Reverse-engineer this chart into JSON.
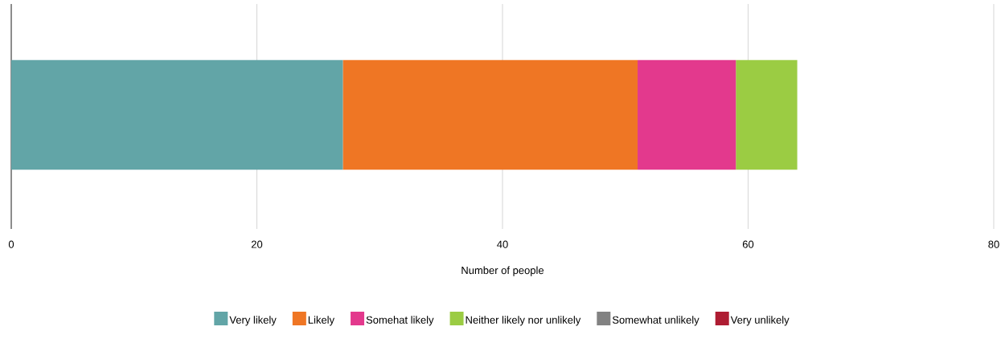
{
  "chart_data": {
    "type": "bar",
    "orientation": "horizontal",
    "stacked": true,
    "xlabel": "Number of people",
    "categories": [
      null
    ],
    "series": [
      {
        "name": "Very likely",
        "color": "#62a5a7",
        "values": [
          27
        ]
      },
      {
        "name": "Likely",
        "color": "#ef7624",
        "values": [
          24
        ]
      },
      {
        "name": "Somehat likely",
        "color": "#e3398d",
        "values": [
          8
        ]
      },
      {
        "name": "Neither likely nor unlikely",
        "color": "#9bcc43",
        "values": [
          5
        ]
      },
      {
        "name": "Somewhat unlikely",
        "color": "#828282",
        "values": [
          0
        ]
      },
      {
        "name": "Very unlikely",
        "color": "#ae1c32",
        "values": [
          0
        ]
      }
    ],
    "xlim": [
      0,
      80
    ],
    "xticks": [
      0,
      20,
      40,
      60,
      80
    ],
    "grid": "x",
    "legend": "bottom"
  }
}
